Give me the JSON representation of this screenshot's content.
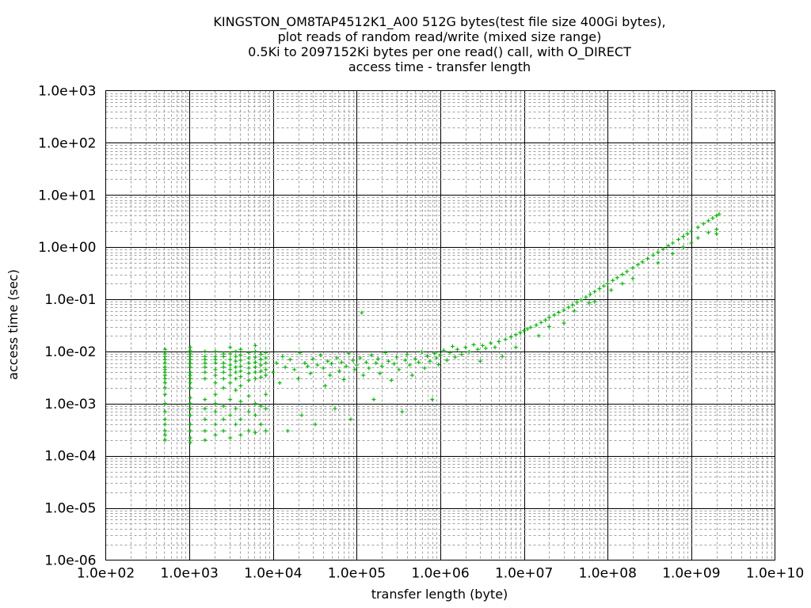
{
  "chart_data": {
    "type": "scatter",
    "title": [
      "KINGSTON_OM8TAP4512K1_A00 512G bytes(test file size 400Gi bytes),",
      "plot reads of random read/write (mixed size range)",
      "0.5Ki to 2097152Ki bytes per one read() call, with O_DIRECT",
      "access time - transfer length"
    ],
    "xlabel": "transfer length (byte)",
    "ylabel": "access time (sec)",
    "xscale": "log",
    "yscale": "log",
    "xlim": [
      100,
      10000000000
    ],
    "ylim": [
      1e-06,
      1000
    ],
    "xticks": [
      "1.0e+02",
      "1.0e+03",
      "1.0e+04",
      "1.0e+05",
      "1.0e+06",
      "1.0e+07",
      "1.0e+08",
      "1.0e+09",
      "1.0e+10"
    ],
    "yticks": [
      "1.0e-06",
      "1.0e-05",
      "1.0e-04",
      "1.0e-03",
      "1.0e-02",
      "1.0e-01",
      "1.0e+00",
      "1.0e+01",
      "1.0e+02",
      "1.0e+03"
    ],
    "grid": true,
    "marker": "plus",
    "color": "#00c000",
    "stripes": [
      {
        "x": 512,
        "y": [
          0.0002,
          0.00025,
          0.0003,
          0.0004,
          0.0005,
          0.0007,
          0.001,
          0.0015,
          0.002,
          0.0025,
          0.003,
          0.0035,
          0.004,
          0.0045,
          0.005,
          0.006,
          0.007,
          0.008,
          0.009,
          0.011
        ]
      },
      {
        "x": 1024,
        "y": [
          0.00018,
          0.00022,
          0.0003,
          0.0004,
          0.0006,
          0.0008,
          0.001,
          0.0013,
          0.002,
          0.0025,
          0.003,
          0.0035,
          0.004,
          0.005,
          0.006,
          0.007,
          0.008,
          0.009,
          0.0105,
          0.012
        ]
      },
      {
        "x": 1536,
        "y": [
          0.0002,
          0.0003,
          0.0005,
          0.0008,
          0.0012,
          0.003,
          0.004,
          0.005,
          0.006,
          0.007,
          0.008,
          0.01
        ]
      },
      {
        "x": 2048,
        "y": [
          0.00025,
          0.0004,
          0.0007,
          0.001,
          0.0015,
          0.0025,
          0.0035,
          0.0045,
          0.006,
          0.007,
          0.008,
          0.01
        ]
      },
      {
        "x": 2560,
        "y": [
          0.0003,
          0.0005,
          0.0009,
          0.002,
          0.003,
          0.004,
          0.005,
          0.006,
          0.008,
          0.009
        ]
      },
      {
        "x": 3072,
        "y": [
          0.00022,
          0.0006,
          0.0012,
          0.0025,
          0.0035,
          0.0045,
          0.0055,
          0.007,
          0.009,
          0.012
        ]
      },
      {
        "x": 3584,
        "y": [
          0.0004,
          0.0008,
          0.0018,
          0.003,
          0.004,
          0.005,
          0.0065,
          0.008,
          0.01
        ]
      },
      {
        "x": 4096,
        "y": [
          0.00025,
          0.0005,
          0.0011,
          0.0022,
          0.0033,
          0.0042,
          0.0052,
          0.0068,
          0.0085,
          0.011
        ]
      },
      {
        "x": 5120,
        "y": [
          0.0003,
          0.0007,
          0.0014,
          0.0028,
          0.0038,
          0.0048,
          0.006,
          0.0075,
          0.0095
        ]
      },
      {
        "x": 6144,
        "y": [
          0.00028,
          0.0006,
          0.001,
          0.003,
          0.004,
          0.005,
          0.0062,
          0.0078,
          0.01,
          0.013
        ]
      },
      {
        "x": 7168,
        "y": [
          0.0004,
          0.0009,
          0.0032,
          0.0042,
          0.0055,
          0.007,
          0.0088
        ]
      },
      {
        "x": 8192,
        "y": [
          0.0003,
          0.0008,
          0.0015,
          0.0035,
          0.0045,
          0.006,
          0.0075,
          0.0095
        ]
      }
    ],
    "points": [
      [
        10000,
        0.004
      ],
      [
        11000,
        0.006
      ],
      [
        12000,
        0.0025
      ],
      [
        13000,
        0.008
      ],
      [
        14000,
        0.005
      ],
      [
        15000,
        0.0003
      ],
      [
        16000,
        0.007
      ],
      [
        18000,
        0.0045
      ],
      [
        20000,
        0.003
      ],
      [
        21000,
        0.0095
      ],
      [
        22000,
        0.0006
      ],
      [
        24000,
        0.006
      ],
      [
        26000,
        0.0052
      ],
      [
        28000,
        0.0038
      ],
      [
        30000,
        0.0072
      ],
      [
        32000,
        0.0004
      ],
      [
        34000,
        0.0055
      ],
      [
        37000,
        0.0085
      ],
      [
        40000,
        0.0048
      ],
      [
        42000,
        0.0022
      ],
      [
        45000,
        0.0065
      ],
      [
        48000,
        0.0035
      ],
      [
        50000,
        0.0058
      ],
      [
        55000,
        0.0008
      ],
      [
        58000,
        0.0075
      ],
      [
        62000,
        0.0042
      ],
      [
        66000,
        0.0062
      ],
      [
        70000,
        0.0029
      ],
      [
        75000,
        0.0052
      ],
      [
        80000,
        0.0092
      ],
      [
        85000,
        0.0005
      ],
      [
        90000,
        0.0068
      ],
      [
        95000,
        0.0045
      ],
      [
        100000,
        0.0055
      ],
      [
        110000,
        0.0075
      ],
      [
        115000,
        0.055
      ],
      [
        120000,
        0.0035
      ],
      [
        130000,
        0.0062
      ],
      [
        140000,
        0.0048
      ],
      [
        150000,
        0.0085
      ],
      [
        160000,
        0.0012
      ],
      [
        170000,
        0.006
      ],
      [
        180000,
        0.0072
      ],
      [
        190000,
        0.0038
      ],
      [
        200000,
        0.0052
      ],
      [
        220000,
        0.0095
      ],
      [
        240000,
        0.0065
      ],
      [
        260000,
        0.0028
      ],
      [
        280000,
        0.0058
      ],
      [
        300000,
        0.0078
      ],
      [
        320000,
        0.0045
      ],
      [
        350000,
        0.0007
      ],
      [
        380000,
        0.0068
      ],
      [
        400000,
        0.0088
      ],
      [
        430000,
        0.0055
      ],
      [
        460000,
        0.0035
      ],
      [
        500000,
        0.0072
      ],
      [
        550000,
        0.0062
      ],
      [
        600000,
        0.0098
      ],
      [
        650000,
        0.0048
      ],
      [
        700000,
        0.0082
      ],
      [
        750000,
        0.0065
      ],
      [
        800000,
        0.0012
      ],
      [
        850000,
        0.0092
      ],
      [
        900000,
        0.0075
      ],
      [
        950000,
        0.0056
      ],
      [
        1000000,
        0.0085
      ],
      [
        1100000,
        0.0105
      ],
      [
        1200000,
        0.0068
      ],
      [
        1300000,
        0.0095
      ],
      [
        1400000,
        0.0125
      ],
      [
        1500000,
        0.0078
      ],
      [
        1600000,
        0.011
      ],
      [
        1800000,
        0.0088
      ],
      [
        2000000,
        0.012
      ],
      [
        2200000,
        0.0098
      ],
      [
        2500000,
        0.0135
      ],
      [
        2800000,
        0.011
      ],
      [
        3000000,
        0.0065
      ],
      [
        3200000,
        0.013
      ],
      [
        3500000,
        0.0115
      ],
      [
        4000000,
        0.0145
      ],
      [
        4500000,
        0.012
      ],
      [
        5000000,
        0.0155
      ],
      [
        5500000,
        0.008
      ],
      [
        6000000,
        0.017
      ],
      [
        7000000,
        0.019
      ],
      [
        8000000,
        0.021
      ],
      [
        9000000,
        0.023
      ],
      [
        10000000,
        0.025
      ],
      [
        11000000,
        0.027
      ],
      [
        12000000,
        0.029
      ],
      [
        14000000,
        0.032
      ],
      [
        16000000,
        0.036
      ],
      [
        18000000,
        0.04
      ],
      [
        20000000,
        0.045
      ],
      [
        23000000,
        0.05
      ],
      [
        26000000,
        0.056
      ],
      [
        30000000,
        0.062
      ],
      [
        34000000,
        0.07
      ],
      [
        38000000,
        0.078
      ],
      [
        43000000,
        0.088
      ],
      [
        48000000,
        0.098
      ],
      [
        55000000,
        0.11
      ],
      [
        62000000,
        0.125
      ],
      [
        70000000,
        0.14
      ],
      [
        80000000,
        0.16
      ],
      [
        90000000,
        0.18
      ],
      [
        100000000,
        0.2
      ],
      [
        115000000,
        0.23
      ],
      [
        130000000,
        0.26
      ],
      [
        150000000,
        0.3
      ],
      [
        170000000,
        0.34
      ],
      [
        200000000,
        0.4
      ],
      [
        230000000,
        0.46
      ],
      [
        260000000,
        0.52
      ],
      [
        300000000,
        0.6
      ],
      [
        350000000,
        0.7
      ],
      [
        400000000,
        0.8
      ],
      [
        460000000,
        0.92
      ],
      [
        530000000,
        1.06
      ],
      [
        600000000,
        1.2
      ],
      [
        700000000,
        1.4
      ],
      [
        800000000,
        1.6
      ],
      [
        900000000,
        1.8
      ],
      [
        1000000000,
        2.0
      ],
      [
        1200000000,
        2.4
      ],
      [
        1400000000,
        2.8
      ],
      [
        1600000000,
        3.2
      ],
      [
        1800000000,
        3.6
      ],
      [
        2000000000,
        4.0
      ],
      [
        2147483648,
        4.3
      ],
      [
        20000000,
        0.03
      ],
      [
        40000000,
        0.06
      ],
      [
        60000000,
        0.085
      ],
      [
        110000000,
        0.15
      ],
      [
        200000000,
        0.25
      ],
      [
        400000000,
        0.5
      ],
      [
        800000000,
        1.0
      ],
      [
        1200000000,
        1.5
      ],
      [
        2000000000,
        2.2
      ],
      [
        2000000000,
        1.8
      ],
      [
        8000000,
        0.012
      ],
      [
        15000000,
        0.02
      ],
      [
        30000000,
        0.035
      ],
      [
        70000000,
        0.09
      ],
      [
        150000000,
        0.2
      ],
      [
        600000000,
        0.75
      ],
      [
        1000000000,
        1.2
      ],
      [
        1600000000,
        1.9
      ]
    ]
  }
}
